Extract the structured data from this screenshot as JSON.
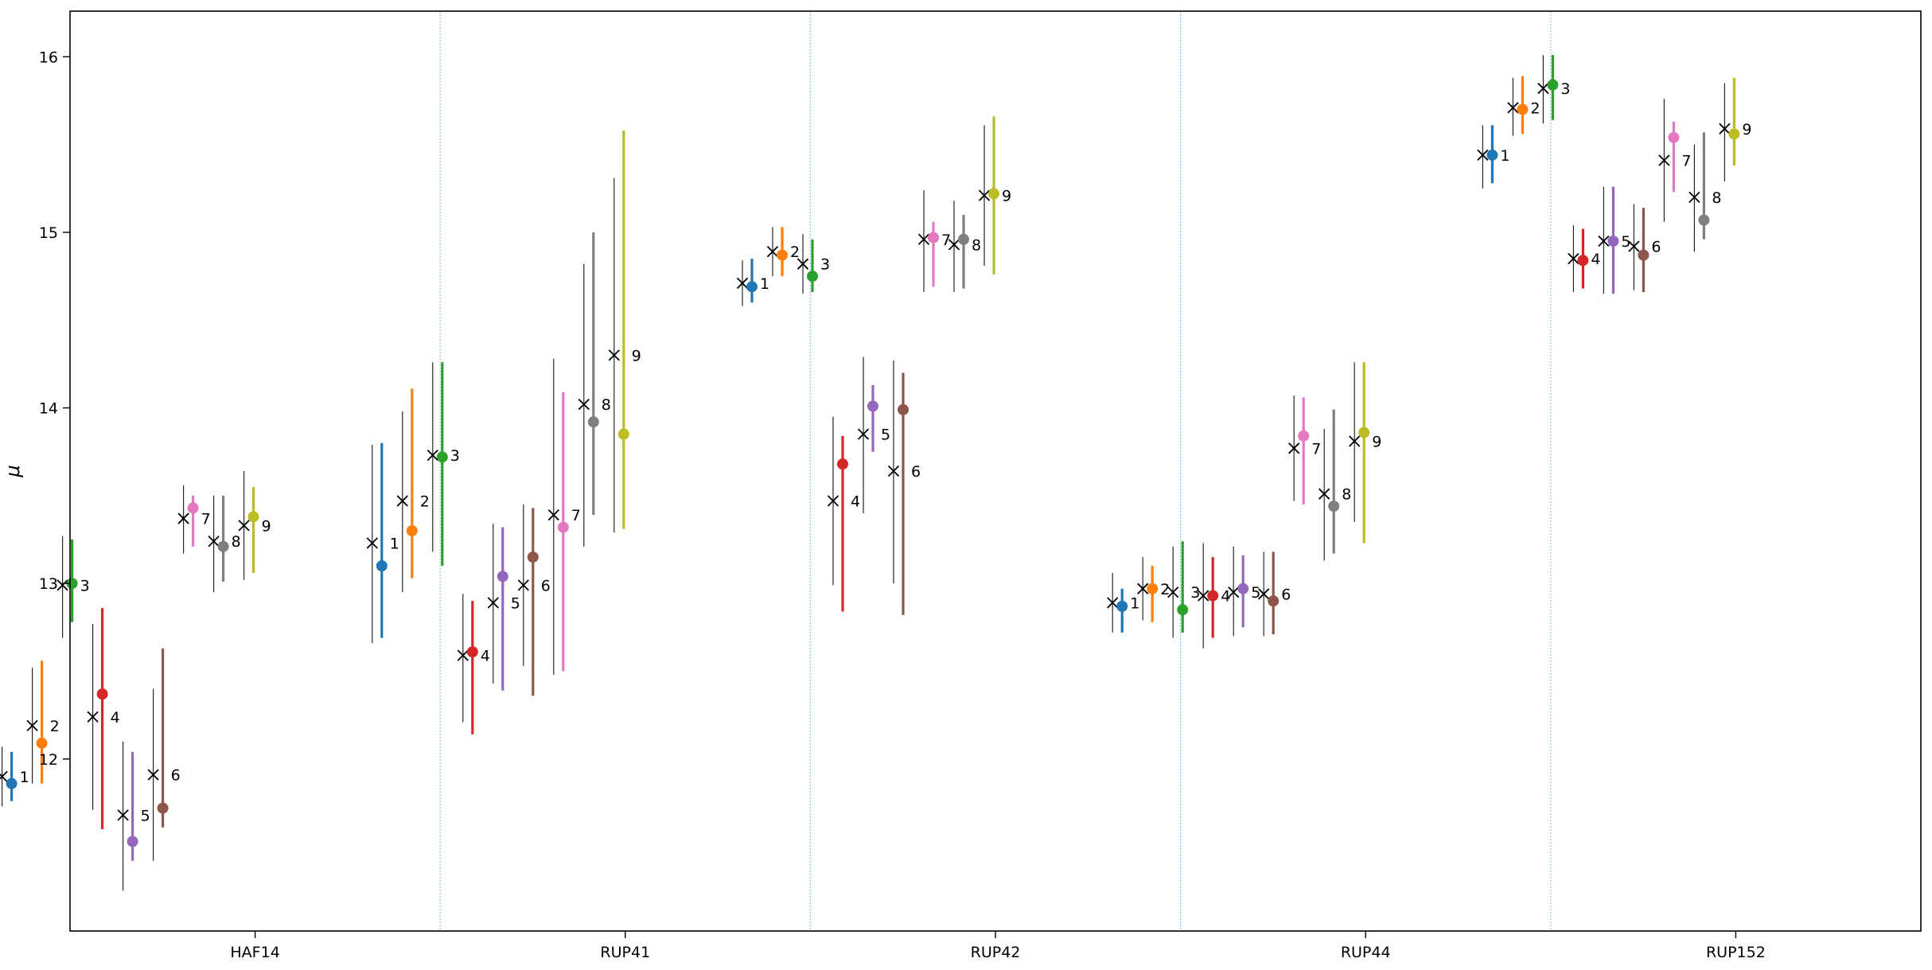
{
  "chart_data": {
    "type": "scatter",
    "ylabel": "μ",
    "xlabel": "",
    "title": "",
    "ylim": [
      11.02,
      16.26
    ],
    "yticks": [
      12,
      13,
      14,
      15,
      16
    ],
    "grid": false,
    "categories": [
      "HAF14",
      "RUP41",
      "RUP42",
      "RUP44",
      "RUP152"
    ],
    "colors": [
      "#1f77b4",
      "#ff7f0e",
      "#2ca02c",
      "#d62728",
      "#9467bd",
      "#8c564b",
      "#e377c2",
      "#7f7f7f",
      "#bcbd22"
    ],
    "point_labels": [
      "1",
      "2",
      "3",
      "4",
      "5",
      "6",
      "7",
      "8",
      "9"
    ],
    "groups": [
      {
        "cluster": "HAF14",
        "points": [
          {
            "label": "1",
            "ref": 11.9,
            "ref_lo": 11.73,
            "ref_hi": 12.07,
            "mu": 11.86,
            "mu_lo": 11.76,
            "mu_hi": 12.04
          },
          {
            "label": "2",
            "ref": 12.19,
            "ref_lo": 11.86,
            "ref_hi": 12.52,
            "mu": 12.09,
            "mu_lo": 11.86,
            "mu_hi": 12.56
          },
          {
            "label": "3",
            "ref": 12.99,
            "ref_lo": 12.69,
            "ref_hi": 13.27,
            "mu": 13.0,
            "mu_lo": 12.78,
            "mu_hi": 13.25
          },
          {
            "label": "4",
            "ref": 12.24,
            "ref_lo": 11.71,
            "ref_hi": 12.77,
            "mu": 12.37,
            "mu_lo": 11.6,
            "mu_hi": 12.86
          },
          {
            "label": "5",
            "ref": 11.68,
            "ref_lo": 11.25,
            "ref_hi": 12.1,
            "mu": 11.53,
            "mu_lo": 11.42,
            "mu_hi": 12.04
          },
          {
            "label": "6",
            "ref": 11.91,
            "ref_lo": 11.42,
            "ref_hi": 12.4,
            "mu": 11.72,
            "mu_lo": 11.61,
            "mu_hi": 12.63
          },
          {
            "label": "7",
            "ref": 13.37,
            "ref_lo": 13.17,
            "ref_hi": 13.56,
            "mu": 13.43,
            "mu_lo": 13.21,
            "mu_hi": 13.5
          },
          {
            "label": "8",
            "ref": 13.24,
            "ref_lo": 12.95,
            "ref_hi": 13.5,
            "mu": 13.21,
            "mu_lo": 13.01,
            "mu_hi": 13.5
          },
          {
            "label": "9",
            "ref": 13.33,
            "ref_lo": 13.02,
            "ref_hi": 13.64,
            "mu": 13.38,
            "mu_lo": 13.06,
            "mu_hi": 13.55
          }
        ]
      },
      {
        "cluster": "RUP41",
        "points": [
          {
            "label": "1",
            "ref": 13.23,
            "ref_lo": 12.66,
            "ref_hi": 13.79,
            "mu": 13.1,
            "mu_lo": 12.69,
            "mu_hi": 13.8
          },
          {
            "label": "2",
            "ref": 13.47,
            "ref_lo": 12.95,
            "ref_hi": 13.98,
            "mu": 13.3,
            "mu_lo": 13.03,
            "mu_hi": 14.11
          },
          {
            "label": "3",
            "ref": 13.73,
            "ref_lo": 13.18,
            "ref_hi": 14.26,
            "mu": 13.72,
            "mu_lo": 13.1,
            "mu_hi": 14.26
          },
          {
            "label": "4",
            "ref": 12.59,
            "ref_lo": 12.21,
            "ref_hi": 12.94,
            "mu": 12.61,
            "mu_lo": 12.14,
            "mu_hi": 12.9
          },
          {
            "label": "5",
            "ref": 12.89,
            "ref_lo": 12.43,
            "ref_hi": 13.34,
            "mu": 13.04,
            "mu_lo": 12.39,
            "mu_hi": 13.32
          },
          {
            "label": "6",
            "ref": 12.99,
            "ref_lo": 12.53,
            "ref_hi": 13.45,
            "mu": 13.15,
            "mu_lo": 12.36,
            "mu_hi": 13.43
          },
          {
            "label": "7",
            "ref": 13.39,
            "ref_lo": 12.48,
            "ref_hi": 14.28,
            "mu": 13.32,
            "mu_lo": 12.5,
            "mu_hi": 14.09
          },
          {
            "label": "8",
            "ref": 14.02,
            "ref_lo": 13.21,
            "ref_hi": 14.82,
            "mu": 13.92,
            "mu_lo": 13.39,
            "mu_hi": 15.0
          },
          {
            "label": "9",
            "ref": 14.3,
            "ref_lo": 13.29,
            "ref_hi": 15.31,
            "mu": 13.85,
            "mu_lo": 13.31,
            "mu_hi": 15.58
          }
        ]
      },
      {
        "cluster": "RUP42",
        "points": [
          {
            "label": "1",
            "ref": 14.71,
            "ref_lo": 14.58,
            "ref_hi": 14.84,
            "mu": 14.69,
            "mu_lo": 14.6,
            "mu_hi": 14.85
          },
          {
            "label": "2",
            "ref": 14.89,
            "ref_lo": 14.75,
            "ref_hi": 15.03,
            "mu": 14.87,
            "mu_lo": 14.75,
            "mu_hi": 15.03
          },
          {
            "label": "3",
            "ref": 14.82,
            "ref_lo": 14.65,
            "ref_hi": 14.99,
            "mu": 14.75,
            "mu_lo": 14.66,
            "mu_hi": 14.96
          },
          {
            "label": "4",
            "ref": 13.47,
            "ref_lo": 12.99,
            "ref_hi": 13.95,
            "mu": 13.68,
            "mu_lo": 12.84,
            "mu_hi": 13.84
          },
          {
            "label": "5",
            "ref": 13.85,
            "ref_lo": 13.4,
            "ref_hi": 14.29,
            "mu": 14.01,
            "mu_lo": 13.75,
            "mu_hi": 14.13
          },
          {
            "label": "6",
            "ref": 13.64,
            "ref_lo": 13.0,
            "ref_hi": 14.27,
            "mu": 13.99,
            "mu_lo": 12.82,
            "mu_hi": 14.2
          },
          {
            "label": "7",
            "ref": 14.96,
            "ref_lo": 14.66,
            "ref_hi": 15.24,
            "mu": 14.97,
            "mu_lo": 14.69,
            "mu_hi": 15.06
          },
          {
            "label": "8",
            "ref": 14.93,
            "ref_lo": 14.66,
            "ref_hi": 15.18,
            "mu": 14.96,
            "mu_lo": 14.68,
            "mu_hi": 15.1
          },
          {
            "label": "9",
            "ref": 15.21,
            "ref_lo": 14.81,
            "ref_hi": 15.61,
            "mu": 15.22,
            "mu_lo": 14.76,
            "mu_hi": 15.66
          }
        ]
      },
      {
        "cluster": "RUP44",
        "points": [
          {
            "label": "1",
            "ref": 12.89,
            "ref_lo": 12.72,
            "ref_hi": 13.06,
            "mu": 12.87,
            "mu_lo": 12.72,
            "mu_hi": 12.97
          },
          {
            "label": "2",
            "ref": 12.97,
            "ref_lo": 12.79,
            "ref_hi": 13.15,
            "mu": 12.97,
            "mu_lo": 12.78,
            "mu_hi": 13.1
          },
          {
            "label": "3",
            "ref": 12.95,
            "ref_lo": 12.69,
            "ref_hi": 13.21,
            "mu": 12.85,
            "mu_lo": 12.72,
            "mu_hi": 13.24
          },
          {
            "label": "4",
            "ref": 12.93,
            "ref_lo": 12.63,
            "ref_hi": 13.23,
            "mu": 12.93,
            "mu_lo": 12.69,
            "mu_hi": 13.15
          },
          {
            "label": "5",
            "ref": 12.95,
            "ref_lo": 12.7,
            "ref_hi": 13.21,
            "mu": 12.97,
            "mu_lo": 12.75,
            "mu_hi": 13.16
          },
          {
            "label": "6",
            "ref": 12.94,
            "ref_lo": 12.7,
            "ref_hi": 13.18,
            "mu": 12.9,
            "mu_lo": 12.71,
            "mu_hi": 13.18
          },
          {
            "label": "7",
            "ref": 13.77,
            "ref_lo": 13.47,
            "ref_hi": 14.07,
            "mu": 13.84,
            "mu_lo": 13.45,
            "mu_hi": 14.06
          },
          {
            "label": "8",
            "ref": 13.51,
            "ref_lo": 13.13,
            "ref_hi": 13.88,
            "mu": 13.44,
            "mu_lo": 13.17,
            "mu_hi": 13.99
          },
          {
            "label": "9",
            "ref": 13.81,
            "ref_lo": 13.35,
            "ref_hi": 14.26,
            "mu": 13.86,
            "mu_lo": 13.23,
            "mu_hi": 14.26
          }
        ]
      },
      {
        "cluster": "RUP152",
        "points": [
          {
            "label": "1",
            "ref": 15.44,
            "ref_lo": 15.25,
            "ref_hi": 15.61,
            "mu": 15.44,
            "mu_lo": 15.28,
            "mu_hi": 15.61
          },
          {
            "label": "2",
            "ref": 15.71,
            "ref_lo": 15.55,
            "ref_hi": 15.88,
            "mu": 15.7,
            "mu_lo": 15.56,
            "mu_hi": 15.89
          },
          {
            "label": "3",
            "ref": 15.82,
            "ref_lo": 15.62,
            "ref_hi": 16.01,
            "mu": 15.84,
            "mu_lo": 15.64,
            "mu_hi": 16.01
          },
          {
            "label": "4",
            "ref": 14.85,
            "ref_lo": 14.66,
            "ref_hi": 15.04,
            "mu": 14.84,
            "mu_lo": 14.68,
            "mu_hi": 15.02
          },
          {
            "label": "5",
            "ref": 14.95,
            "ref_lo": 14.65,
            "ref_hi": 15.26,
            "mu": 14.95,
            "mu_lo": 14.65,
            "mu_hi": 15.26
          },
          {
            "label": "6",
            "ref": 14.92,
            "ref_lo": 14.67,
            "ref_hi": 15.16,
            "mu": 14.87,
            "mu_lo": 14.66,
            "mu_hi": 15.14
          },
          {
            "label": "7",
            "ref": 15.41,
            "ref_lo": 15.06,
            "ref_hi": 15.76,
            "mu": 15.54,
            "mu_lo": 15.23,
            "mu_hi": 15.63
          },
          {
            "label": "8",
            "ref": 15.2,
            "ref_lo": 14.89,
            "ref_hi": 15.5,
            "mu": 15.07,
            "mu_lo": 14.96,
            "mu_hi": 15.57
          },
          {
            "label": "9",
            "ref": 15.59,
            "ref_lo": 15.29,
            "ref_hi": 15.85,
            "mu": 15.56,
            "mu_lo": 15.38,
            "mu_hi": 15.88
          }
        ]
      }
    ]
  }
}
